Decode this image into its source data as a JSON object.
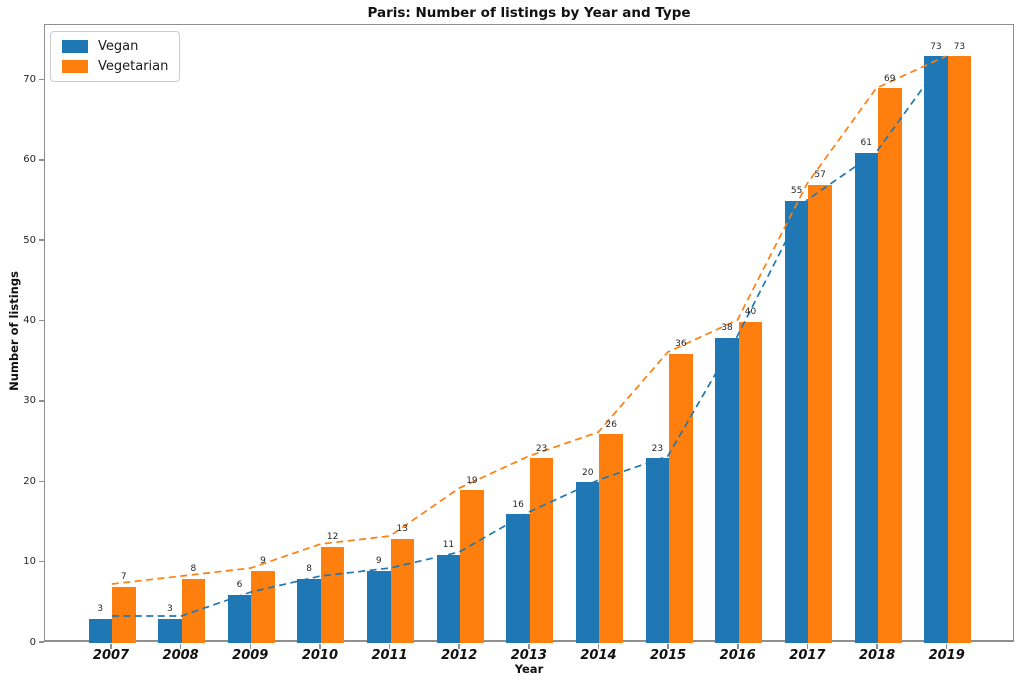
{
  "chart_data": {
    "type": "bar",
    "title": "Paris: Number of listings by Year and Type",
    "xlabel": "Year",
    "ylabel": "Number of listings",
    "categories": [
      "2007",
      "2008",
      "2009",
      "2010",
      "2011",
      "2012",
      "2013",
      "2014",
      "2015",
      "2016",
      "2017",
      "2018",
      "2019"
    ],
    "series": [
      {
        "name": "Vegan",
        "color": "#1f77b4",
        "values": [
          3,
          3,
          6,
          8,
          9,
          11,
          16,
          20,
          23,
          38,
          55,
          61,
          73
        ]
      },
      {
        "name": "Vegetarian",
        "color": "#ff7f0e",
        "values": [
          7,
          8,
          9,
          12,
          13,
          19,
          23,
          26,
          36,
          40,
          57,
          69,
          73
        ]
      }
    ],
    "yticks": [
      0,
      10,
      20,
      30,
      40,
      50,
      60,
      70
    ],
    "ylim": [
      0,
      76.9
    ],
    "bar_value_labels": true,
    "trend_lines": "dashed",
    "legend_position": "upper left",
    "grid": false
  }
}
